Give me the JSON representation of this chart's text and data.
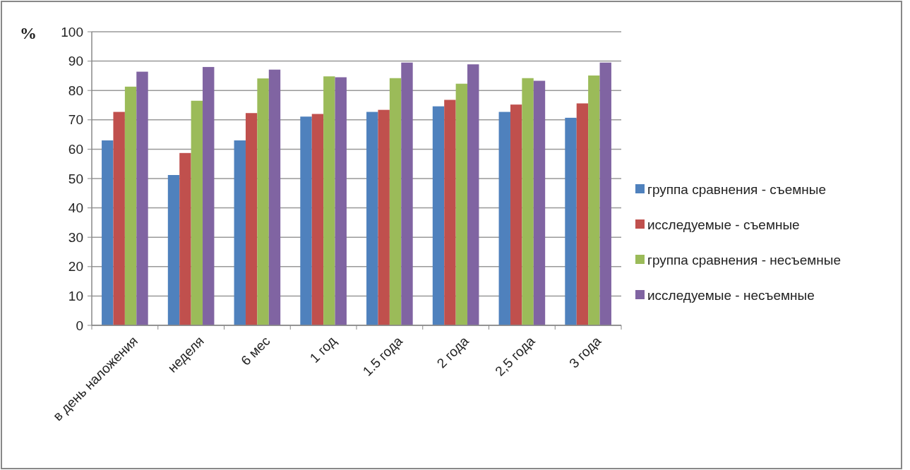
{
  "chart_data": {
    "type": "bar",
    "ylabel": "%",
    "categories": [
      "в день наложения",
      "неделя",
      "6 мес",
      "1 год",
      "1.5 года",
      "2 года",
      "2,5 года",
      "3 года"
    ],
    "series": [
      {
        "name": "группа сравнения - съемные",
        "color": "#4f81bd",
        "values": [
          63,
          51.2,
          63,
          71.1,
          72.7,
          74.6,
          72.7,
          70.7
        ]
      },
      {
        "name": "исследуемые - съемные",
        "color": "#c0504d",
        "values": [
          72.7,
          58.7,
          72.3,
          72,
          73.4,
          76.8,
          75.2,
          75.6
        ]
      },
      {
        "name": "группа сравнения - несъемные",
        "color": "#9bbb59",
        "values": [
          81.3,
          76.5,
          84.1,
          84.8,
          84.2,
          82.3,
          84.2,
          85.1
        ]
      },
      {
        "name": "исследуемые - несъемные",
        "color": "#8064a2",
        "values": [
          86.4,
          88,
          87.1,
          84.5,
          89.5,
          88.9,
          83.3,
          89.5
        ]
      }
    ],
    "ylim": [
      0,
      100
    ],
    "yticks": [
      0,
      10,
      20,
      30,
      40,
      50,
      60,
      70,
      80,
      90,
      100
    ],
    "grid": "y",
    "legend": "right"
  }
}
